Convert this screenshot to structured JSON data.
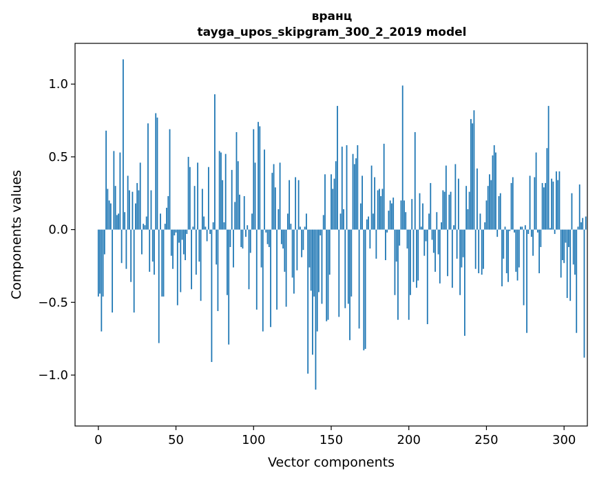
{
  "chart_data": {
    "type": "bar",
    "title": "вранц",
    "subtitle": "tayga_upos_skipgram_300_2_2019 model",
    "xlabel": "Vector components",
    "ylabel": "Components values",
    "xlim": [
      -15,
      315
    ],
    "ylim": [
      -1.35,
      1.28
    ],
    "xticks": [
      0,
      50,
      100,
      150,
      200,
      250,
      300
    ],
    "xtick_labels": [
      "0",
      "50",
      "100",
      "150",
      "200",
      "250",
      "300"
    ],
    "yticks": [
      -1.0,
      -0.5,
      0.0,
      0.5,
      1.0
    ],
    "ytick_labels": [
      "−1.0",
      "−0.5",
      "0.0",
      "0.5",
      "1.0"
    ],
    "color": "#1f77b4",
    "grid": false,
    "values": [
      -0.46,
      -0.44,
      -0.7,
      -0.46,
      -0.17,
      0.68,
      0.28,
      0.2,
      0.18,
      -0.57,
      0.54,
      0.3,
      0.1,
      0.11,
      0.53,
      -0.23,
      1.17,
      0.12,
      -0.27,
      0.37,
      0.27,
      -0.36,
      0.26,
      -0.57,
      0.18,
      0.32,
      0.27,
      0.46,
      -0.17,
      0.04,
      0.03,
      0.09,
      0.73,
      -0.29,
      0.27,
      -0.22,
      -0.31,
      0.8,
      0.77,
      -0.78,
      0.11,
      -0.46,
      -0.46,
      0.04,
      0.15,
      0.23,
      0.69,
      -0.18,
      -0.27,
      -0.04,
      -0.02,
      -0.52,
      -0.09,
      -0.43,
      -0.07,
      -0.17,
      -0.21,
      -0.03,
      0.5,
      0.43,
      -0.41,
      0.02,
      0.3,
      -0.31,
      0.46,
      -0.22,
      -0.49,
      0.28,
      0.09,
      0.02,
      -0.08,
      0.43,
      -0.03,
      -0.91,
      0.05,
      0.93,
      -0.24,
      -0.56,
      0.54,
      0.53,
      0.34,
      0.05,
      0.52,
      -0.45,
      -0.79,
      -0.12,
      0.41,
      -0.26,
      0.19,
      0.67,
      0.47,
      0.24,
      -0.12,
      -0.13,
      0.23,
      -0.05,
      0.03,
      -0.41,
      -0.16,
      0.11,
      0.69,
      0.46,
      -0.55,
      0.74,
      0.71,
      -0.26,
      -0.7,
      0.55,
      -0.02,
      -0.1,
      -0.12,
      -0.67,
      0.39,
      0.45,
      0.29,
      -0.55,
      0.14,
      0.46,
      -0.1,
      -0.13,
      -0.29,
      -0.53,
      0.11,
      0.34,
      0.04,
      -0.33,
      -0.44,
      0.36,
      -0.28,
      0.34,
      0.02,
      -0.19,
      -0.14,
      0.02,
      0.11,
      -0.99,
      -0.26,
      -0.42,
      -0.86,
      -0.46,
      -1.1,
      -0.7,
      -0.43,
      -0.04,
      -0.51,
      0.1,
      0.38,
      -0.63,
      -0.62,
      -0.31,
      0.38,
      0.28,
      0.35,
      0.47,
      0.85,
      -0.6,
      0.11,
      0.57,
      0.14,
      -0.54,
      0.58,
      -0.51,
      -0.76,
      -0.46,
      0.52,
      0.45,
      0.49,
      0.58,
      -0.68,
      0.18,
      0.37,
      -0.83,
      -0.82,
      0.07,
      0.09,
      -0.13,
      0.44,
      0.11,
      0.36,
      -0.2,
      0.27,
      0.28,
      0.23,
      0.28,
      0.59,
      -0.21,
      -0.02,
      0.13,
      0.2,
      0.18,
      0.22,
      -0.45,
      -0.22,
      -0.62,
      -0.11,
      0.2,
      0.99,
      0.2,
      0.12,
      -0.13,
      -0.62,
      -0.45,
      0.21,
      -0.36,
      0.67,
      -0.4,
      -0.35,
      0.25,
      0.02,
      0.18,
      -0.18,
      -0.08,
      -0.65,
      0.11,
      0.32,
      -0.07,
      -0.16,
      -0.29,
      0.12,
      -0.17,
      -0.37,
      0.05,
      0.27,
      0.26,
      0.44,
      -0.32,
      0.24,
      0.26,
      -0.4,
      0.03,
      0.45,
      -0.2,
      0.35,
      -0.45,
      -0.26,
      -0.19,
      -0.73,
      0.3,
      0.14,
      0.26,
      0.76,
      0.73,
      0.82,
      -0.27,
      0.42,
      -0.3,
      0.11,
      -0.31,
      -0.27,
      0.05,
      0.2,
      0.3,
      0.38,
      0.34,
      0.51,
      0.58,
      0.53,
      -0.05,
      0.23,
      0.25,
      -0.39,
      -0.2,
      0.02,
      -0.3,
      -0.36,
      -0.01,
      0.32,
      0.36,
      -0.02,
      -0.29,
      -0.35,
      -0.26,
      0.02,
      0.02,
      -0.52,
      0.03,
      -0.71,
      -0.03,
      0.37,
      -0.05,
      -0.18,
      0.36,
      0.53,
      -0.02,
      -0.3,
      -0.12,
      0.32,
      0.29,
      0.32,
      0.56,
      0.85,
      0.01,
      0.35,
      0.33,
      -0.03,
      0.4,
      0.34,
      0.4,
      -0.33,
      -0.21,
      -0.23,
      -0.09,
      -0.47,
      -0.12,
      -0.49,
      0.25,
      -0.24,
      -0.31,
      -0.71,
      0.02,
      0.31,
      0.05,
      0.08,
      -0.88,
      0.09
    ]
  }
}
